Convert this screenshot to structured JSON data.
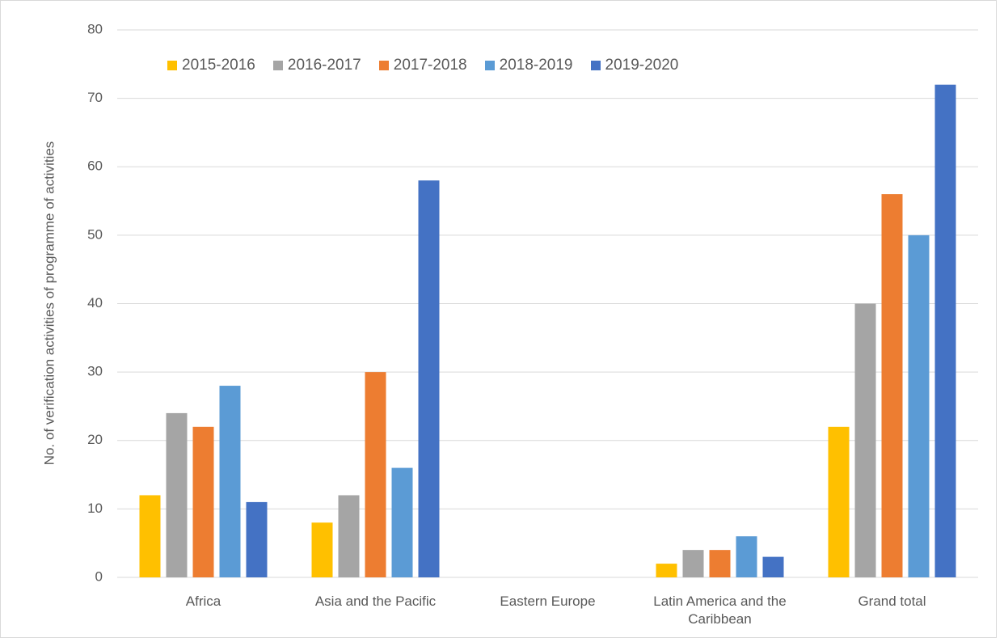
{
  "chart_data": {
    "type": "bar",
    "ylabel": "No. of verification activities of programme of activities",
    "categories": [
      "Africa",
      "Asia and the Pacific",
      "Eastern Europe",
      "Latin America and the Caribbean",
      "Grand total"
    ],
    "series": [
      {
        "name": "2015-2016",
        "color": "#FFC000",
        "values": [
          12,
          8,
          0,
          2,
          22
        ]
      },
      {
        "name": "2016-2017",
        "color": "#A5A5A5",
        "values": [
          24,
          12,
          0,
          4,
          40
        ]
      },
      {
        "name": "2017-2018",
        "color": "#ED7D31",
        "values": [
          22,
          30,
          0,
          4,
          56
        ]
      },
      {
        "name": "2018-2019",
        "color": "#5B9BD5",
        "values": [
          28,
          16,
          0,
          6,
          50
        ]
      },
      {
        "name": "2019-2020",
        "color": "#4472C4",
        "values": [
          11,
          58,
          0,
          3,
          72
        ]
      }
    ],
    "ylim": [
      0,
      80
    ],
    "yticks": [
      0,
      10,
      20,
      30,
      40,
      50,
      60,
      70,
      80
    ],
    "grid": true,
    "legend": "top"
  }
}
